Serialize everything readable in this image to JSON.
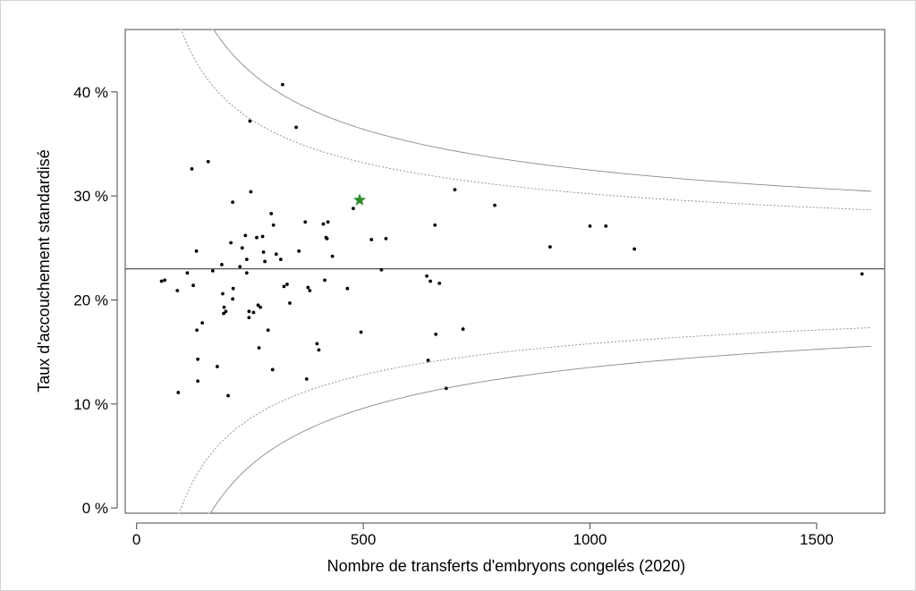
{
  "chart_data": {
    "type": "scatter",
    "title": "",
    "xlabel": "Nombre de transferts d'embryons congelés (2020)",
    "ylabel": "Taux d'accouchement standardisé",
    "xlim": [
      -25,
      1650
    ],
    "ylim": [
      -0.5,
      46
    ],
    "x_ticks": [
      0,
      500,
      1000,
      1500
    ],
    "x_tick_labels": [
      "0",
      "500",
      "1000",
      "1500"
    ],
    "y_ticks": [
      0,
      10,
      20,
      30,
      40
    ],
    "y_tick_labels": [
      "0 %",
      "10 %",
      "20 %",
      "30 %",
      "40 %"
    ],
    "grid": false,
    "reference_line": {
      "y": 23.0
    },
    "funnel": {
      "center": 23.0,
      "outer_half_width_at_1": 300,
      "inner_half_width_at_1": 228,
      "x_range": [
        5,
        1620
      ]
    },
    "highlight_point": {
      "x": 492,
      "y": 29.6,
      "color": "#2e8b2e",
      "marker": "star"
    },
    "points": [
      {
        "x": 55,
        "y": 21.8
      },
      {
        "x": 62,
        "y": 21.9
      },
      {
        "x": 90,
        "y": 20.9
      },
      {
        "x": 92,
        "y": 11.1
      },
      {
        "x": 112,
        "y": 22.6
      },
      {
        "x": 122,
        "y": 32.6
      },
      {
        "x": 125,
        "y": 21.4
      },
      {
        "x": 132,
        "y": 24.7
      },
      {
        "x": 133,
        "y": 17.1
      },
      {
        "x": 135,
        "y": 14.3
      },
      {
        "x": 135,
        "y": 12.2
      },
      {
        "x": 145,
        "y": 17.8
      },
      {
        "x": 158,
        "y": 33.3
      },
      {
        "x": 168,
        "y": 22.8
      },
      {
        "x": 178,
        "y": 13.6
      },
      {
        "x": 188,
        "y": 23.4
      },
      {
        "x": 190,
        "y": 20.6
      },
      {
        "x": 192,
        "y": 18.7
      },
      {
        "x": 193,
        "y": 19.3
      },
      {
        "x": 197,
        "y": 18.9
      },
      {
        "x": 202,
        "y": 10.8
      },
      {
        "x": 208,
        "y": 25.5
      },
      {
        "x": 212,
        "y": 29.4
      },
      {
        "x": 212,
        "y": 20.1
      },
      {
        "x": 213,
        "y": 21.1
      },
      {
        "x": 228,
        "y": 23.2
      },
      {
        "x": 233,
        "y": 25.0
      },
      {
        "x": 240,
        "y": 26.2
      },
      {
        "x": 243,
        "y": 22.6
      },
      {
        "x": 243,
        "y": 23.9
      },
      {
        "x": 248,
        "y": 18.3
      },
      {
        "x": 248,
        "y": 18.9
      },
      {
        "x": 250,
        "y": 37.2
      },
      {
        "x": 252,
        "y": 30.4
      },
      {
        "x": 258,
        "y": 18.8
      },
      {
        "x": 265,
        "y": 26.0
      },
      {
        "x": 268,
        "y": 19.5
      },
      {
        "x": 270,
        "y": 15.4
      },
      {
        "x": 273,
        "y": 19.3
      },
      {
        "x": 278,
        "y": 26.1
      },
      {
        "x": 280,
        "y": 24.6
      },
      {
        "x": 283,
        "y": 23.7
      },
      {
        "x": 290,
        "y": 17.1
      },
      {
        "x": 297,
        "y": 28.3
      },
      {
        "x": 300,
        "y": 13.3
      },
      {
        "x": 302,
        "y": 27.2
      },
      {
        "x": 308,
        "y": 24.4
      },
      {
        "x": 318,
        "y": 23.9
      },
      {
        "x": 322,
        "y": 40.7
      },
      {
        "x": 325,
        "y": 21.3
      },
      {
        "x": 332,
        "y": 21.5
      },
      {
        "x": 338,
        "y": 19.7
      },
      {
        "x": 352,
        "y": 36.6
      },
      {
        "x": 358,
        "y": 24.7
      },
      {
        "x": 372,
        "y": 27.5
      },
      {
        "x": 375,
        "y": 12.4
      },
      {
        "x": 378,
        "y": 21.2
      },
      {
        "x": 382,
        "y": 20.9
      },
      {
        "x": 398,
        "y": 15.8
      },
      {
        "x": 402,
        "y": 15.2
      },
      {
        "x": 412,
        "y": 27.3
      },
      {
        "x": 415,
        "y": 21.9
      },
      {
        "x": 418,
        "y": 26.0
      },
      {
        "x": 420,
        "y": 25.9
      },
      {
        "x": 422,
        "y": 27.5
      },
      {
        "x": 432,
        "y": 24.2
      },
      {
        "x": 465,
        "y": 21.1
      },
      {
        "x": 478,
        "y": 28.8
      },
      {
        "x": 495,
        "y": 16.9
      },
      {
        "x": 518,
        "y": 25.8
      },
      {
        "x": 540,
        "y": 22.9
      },
      {
        "x": 550,
        "y": 25.9
      },
      {
        "x": 640,
        "y": 22.3
      },
      {
        "x": 643,
        "y": 14.2
      },
      {
        "x": 648,
        "y": 21.8
      },
      {
        "x": 658,
        "y": 27.2
      },
      {
        "x": 660,
        "y": 16.7
      },
      {
        "x": 668,
        "y": 21.6
      },
      {
        "x": 683,
        "y": 11.5
      },
      {
        "x": 702,
        "y": 30.6
      },
      {
        "x": 720,
        "y": 17.2
      },
      {
        "x": 790,
        "y": 29.1
      },
      {
        "x": 912,
        "y": 25.1
      },
      {
        "x": 1000,
        "y": 27.1
      },
      {
        "x": 1035,
        "y": 27.1
      },
      {
        "x": 1098,
        "y": 24.9
      },
      {
        "x": 1600,
        "y": 22.5
      }
    ]
  }
}
